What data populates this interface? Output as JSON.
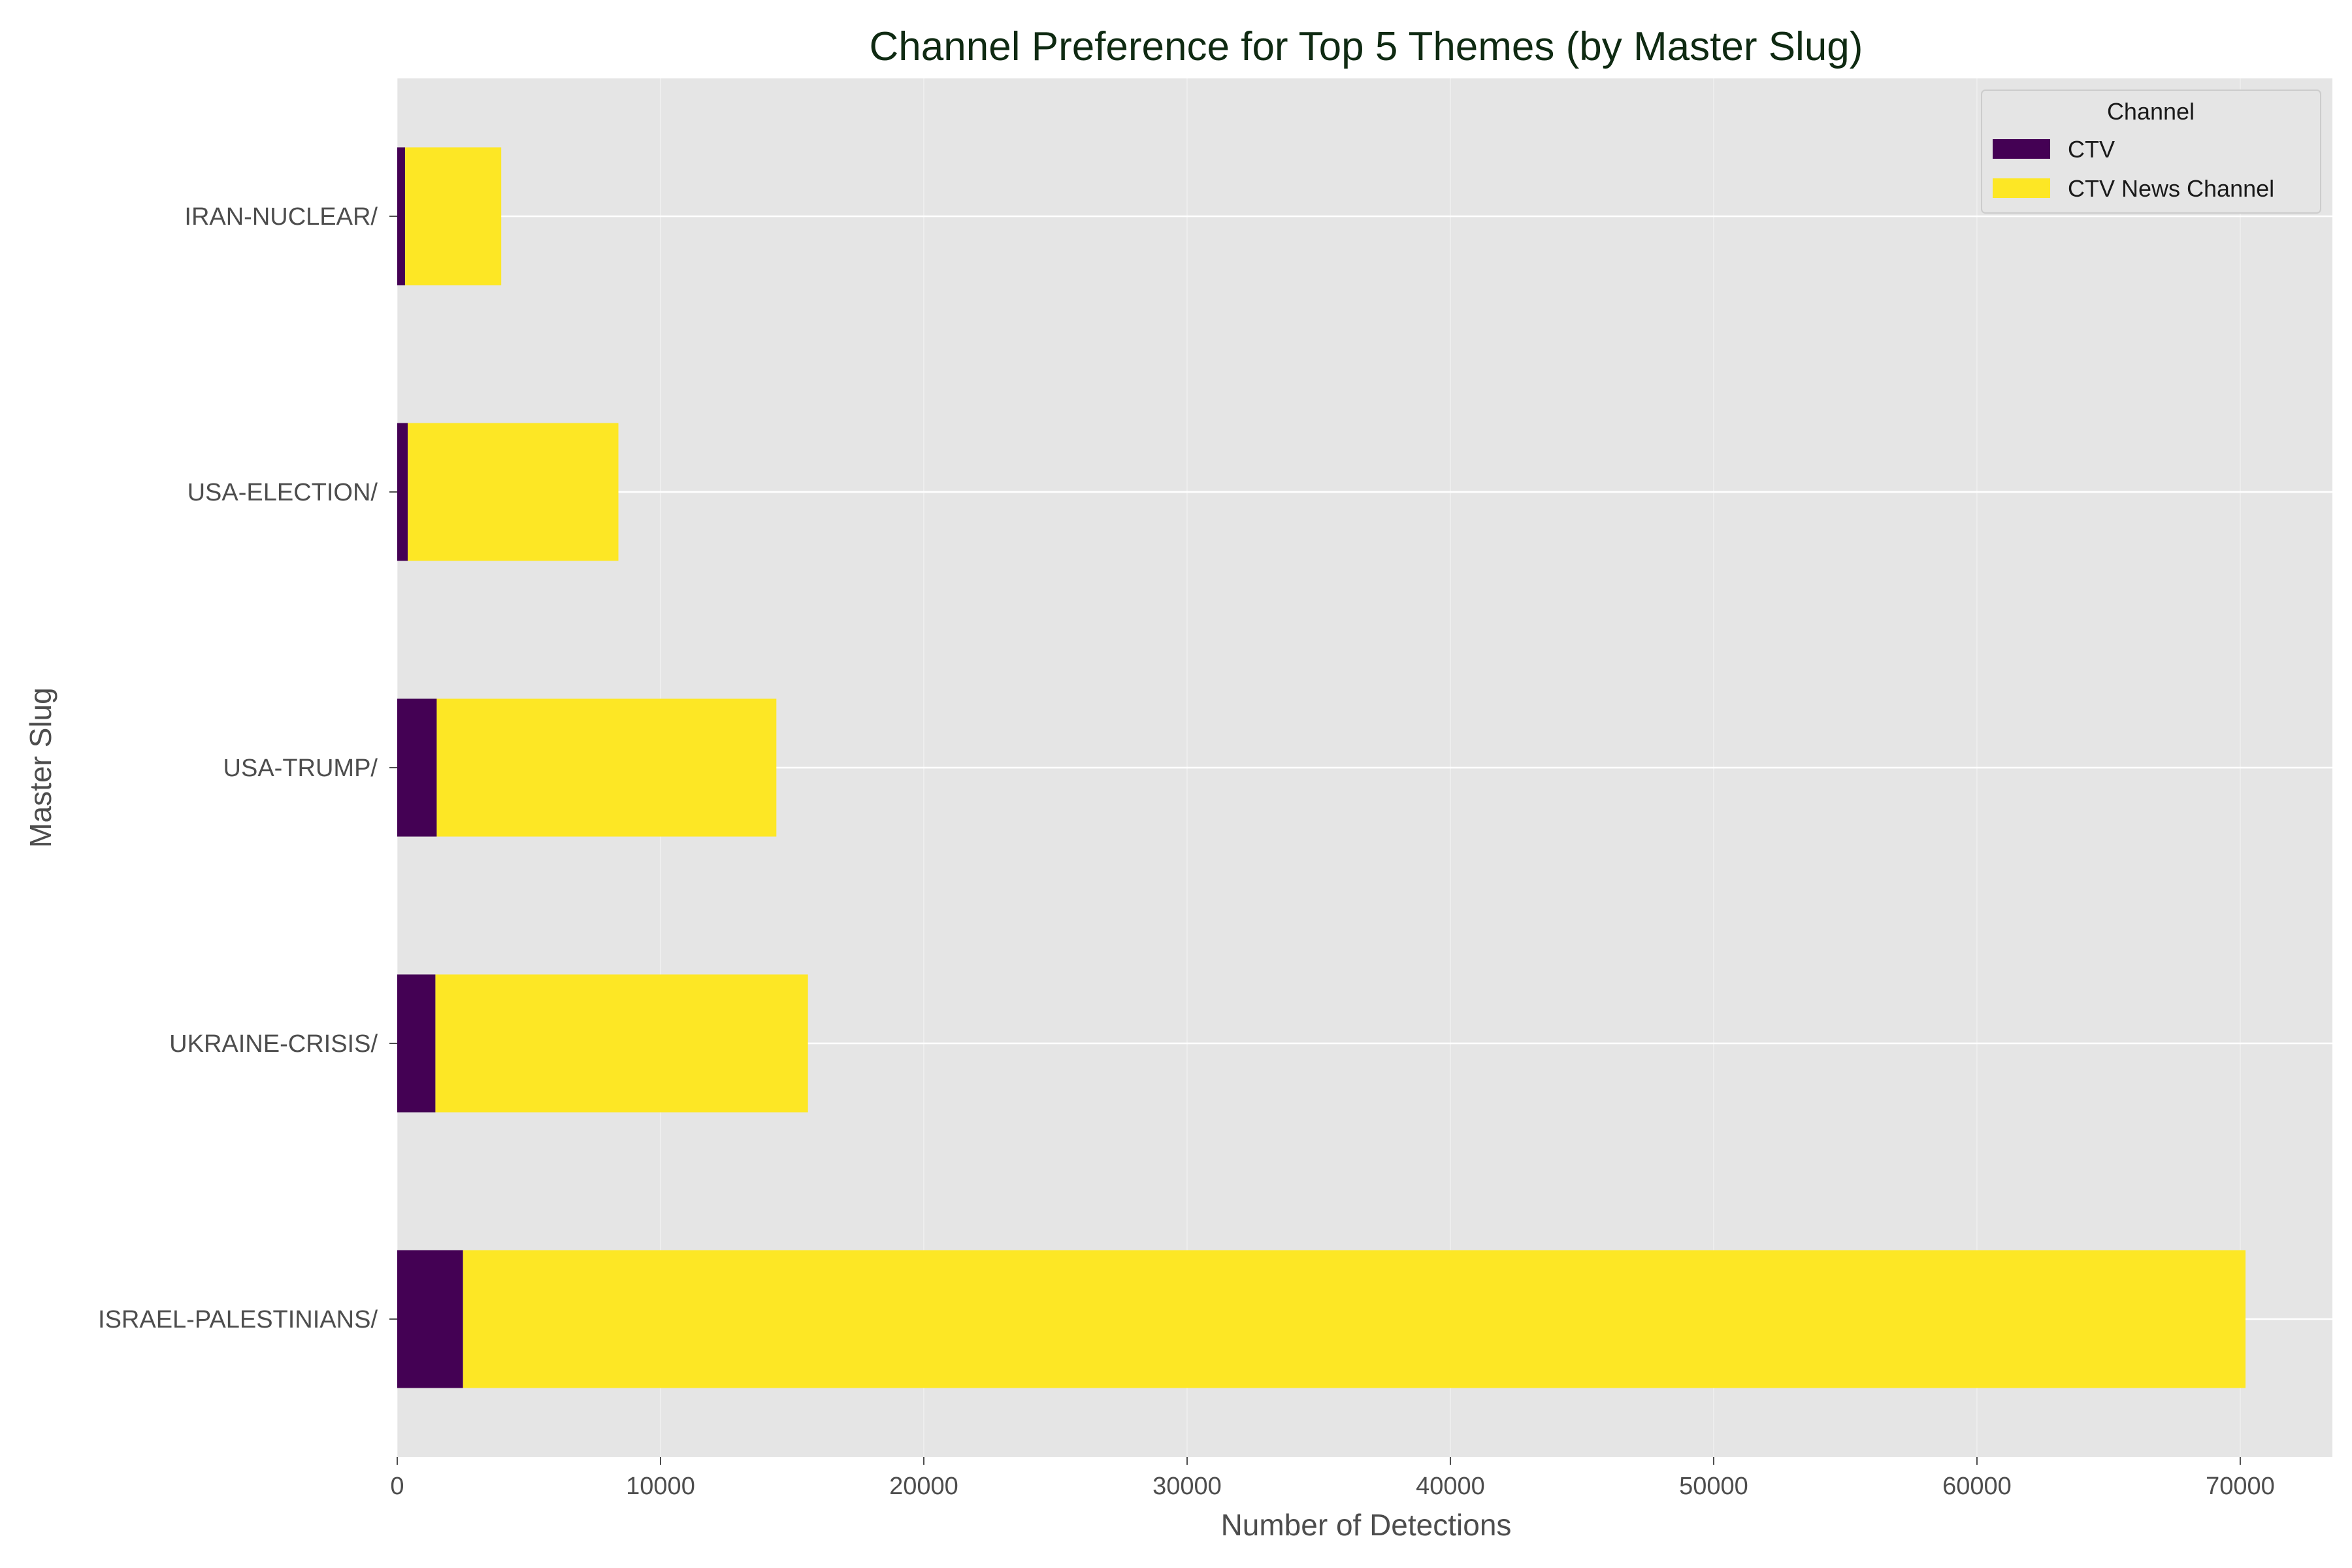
{
  "chart_data": {
    "type": "bar",
    "orientation": "horizontal",
    "stacked": true,
    "title": "Channel Preference for Top 5 Themes (by Master Slug)",
    "xlabel": "Number of Detections",
    "ylabel": "Master Slug",
    "categories": [
      "ISRAEL-PALESTINIANS/",
      "UKRAINE-CRISIS/",
      "USA-TRUMP/",
      "USA-ELECTION/",
      "IRAN-NUCLEAR/"
    ],
    "series": [
      {
        "name": "CTV",
        "color": "#440154",
        "values": [
          2500,
          1450,
          1500,
          400,
          300
        ]
      },
      {
        "name": "CTV News Channel",
        "color": "#fde725",
        "values": [
          67700,
          14150,
          12900,
          8000,
          3650
        ]
      }
    ],
    "xlim": [
      0,
      73500
    ],
    "xticks": [
      0,
      10000,
      20000,
      30000,
      40000,
      50000,
      60000,
      70000
    ],
    "xtick_labels": [
      "0",
      "10000",
      "20000",
      "30000",
      "40000",
      "50000",
      "60000",
      "70000"
    ],
    "grid": true,
    "legend": {
      "title": "Channel",
      "position": "top-right"
    },
    "background": "#e5e5e5",
    "grid_color": "#ffffff"
  }
}
